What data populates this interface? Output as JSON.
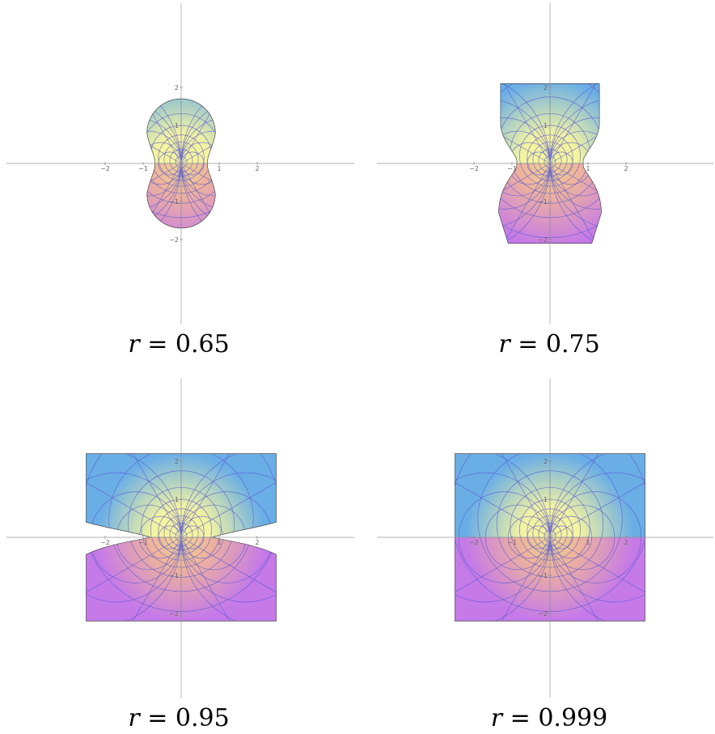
{
  "panels": [
    {
      "r": "0.65",
      "r_value": 0.65,
      "caption_var": "r",
      "caption_eq": "=",
      "caption_val": "0.65"
    },
    {
      "r": "0.75",
      "r_value": 0.75,
      "caption_var": "r",
      "caption_eq": "=",
      "caption_val": "0.75"
    },
    {
      "r": "0.95",
      "r_value": 0.95,
      "caption_var": "r",
      "caption_eq": "=",
      "caption_val": "0.95"
    },
    {
      "r": "0.999",
      "r_value": 0.999,
      "caption_var": "r",
      "caption_eq": "=",
      "caption_val": "0.999"
    }
  ],
  "axes": {
    "x_ticks": [
      "−2",
      "−1",
      "1",
      "2"
    ],
    "y_ticks": [
      "2",
      "1",
      "−1",
      "−2"
    ],
    "xlim": [
      -2.25,
      2.25
    ],
    "ylim": [
      -2,
      2
    ]
  },
  "colors": {
    "upper_edge": "#6aaee6",
    "center": "#f4f4a0",
    "lower_edge": "#c57ae8",
    "grid_lines": "#5a5ad6"
  }
}
